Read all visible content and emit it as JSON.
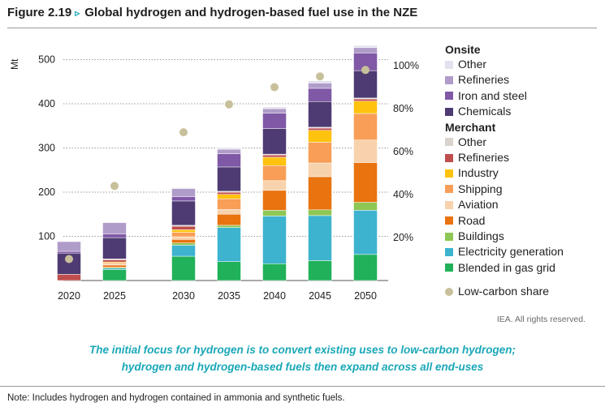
{
  "figure": {
    "number": "Figure 2.19",
    "arrow": "▹",
    "title": "Global hydrogen and hydrogen-based fuel use in the NZE"
  },
  "credit": "IEA. All rights reserved.",
  "caption": {
    "line1": "The initial focus for hydrogen is to convert existing uses to low-carbon hydrogen;",
    "line2": "hydrogen and hydrogen-based fuels then expand across all end-uses"
  },
  "note": "Note: Includes hydrogen and hydrogen contained in ammonia and synthetic fuels.",
  "chart_data": {
    "type": "bar",
    "stacked": true,
    "ylabel": "Mt",
    "ylim": [
      0,
      540
    ],
    "yticks": [
      100,
      200,
      300,
      400,
      500
    ],
    "y2lim": [
      0,
      120
    ],
    "y2ticks": [
      "20%",
      "40%",
      "60%",
      "80%",
      "100%"
    ],
    "y2tick_values": [
      20,
      40,
      60,
      80,
      100
    ],
    "grid": "dotted-horizontal",
    "legend_position": "right",
    "categories": [
      "2020",
      "2025",
      "2030",
      "2035",
      "2040",
      "2045",
      "2050"
    ],
    "legend_groups": [
      {
        "label": "Onsite",
        "items": [
          "Onsite Other",
          "Onsite Refineries",
          "Iron and steel",
          "Chemicals"
        ]
      },
      {
        "label": "Merchant",
        "items": [
          "Merchant Other",
          "Merchant Refineries",
          "Industry",
          "Shipping",
          "Aviation",
          "Road",
          "Buildings",
          "Electricity generation",
          "Blended in gas grid"
        ]
      }
    ],
    "series": [
      {
        "name": "Blended in gas grid",
        "label": "Blended in gas grid",
        "color": "#20b15a",
        "values": [
          0,
          25,
          55,
          43,
          38,
          45,
          59
        ]
      },
      {
        "name": "Electricity generation",
        "label": "Electricity generation",
        "color": "#3db3cf",
        "values": [
          0,
          3,
          25,
          77,
          108,
          102,
          100
        ]
      },
      {
        "name": "Buildings",
        "label": "Buildings",
        "color": "#8ec754",
        "values": [
          0,
          2,
          5,
          5,
          13,
          13,
          18
        ]
      },
      {
        "name": "Road",
        "label": "Road",
        "color": "#e8730f",
        "values": [
          0,
          5,
          8,
          25,
          45,
          75,
          90
        ]
      },
      {
        "name": "Aviation",
        "label": "Aviation",
        "color": "#f8d2ac",
        "values": [
          0,
          2,
          6,
          11,
          22,
          31,
          51
        ]
      },
      {
        "name": "Shipping",
        "label": "Shipping",
        "color": "#f89e56",
        "values": [
          0,
          3,
          10,
          24,
          34,
          47,
          60
        ]
      },
      {
        "name": "Industry",
        "label": "Industry",
        "color": "#ffc20e",
        "values": [
          0,
          2,
          6,
          10,
          19,
          27,
          28
        ]
      },
      {
        "name": "Merchant Refineries",
        "label": "Refineries",
        "color": "#bf4e4e",
        "values": [
          14,
          5,
          8,
          5,
          5,
          5,
          5
        ]
      },
      {
        "name": "Merchant Other",
        "label": "Other",
        "color": "#d9d3cb",
        "values": [
          0,
          2,
          2,
          2,
          2,
          2,
          2
        ]
      },
      {
        "name": "Chemicals",
        "label": "Chemicals",
        "color": "#4e3b73",
        "values": [
          48,
          48,
          55,
          55,
          58,
          58,
          62
        ]
      },
      {
        "name": "Iron and steel",
        "label": "Iron and steel",
        "color": "#7f58a6",
        "values": [
          4,
          8,
          10,
          30,
          35,
          30,
          40
        ]
      },
      {
        "name": "Onsite Refineries",
        "label": "Refineries",
        "color": "#b09cc9",
        "values": [
          22,
          26,
          18,
          10,
          10,
          12,
          12
        ]
      },
      {
        "name": "Onsite Other",
        "label": "Other",
        "color": "#e4e0ee",
        "values": [
          0,
          0,
          2,
          3,
          4,
          5,
          5
        ]
      }
    ],
    "low_carbon_share": {
      "name": "Low-carbon share",
      "label": "Low-carbon share",
      "color": "#c8c09b",
      "values": [
        10,
        44,
        69,
        82,
        90,
        95,
        98
      ]
    }
  }
}
